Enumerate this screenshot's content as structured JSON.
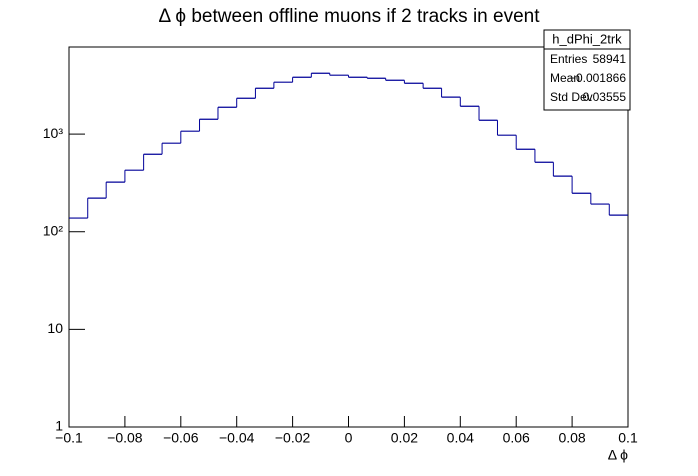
{
  "chart_data": {
    "type": "histogram",
    "title": "Δ ϕ between offline muons if 2 tracks in event",
    "x_label": "Δ ϕ",
    "bins": [
      -0.1,
      -0.0933,
      -0.0867,
      -0.08,
      -0.0733,
      -0.0667,
      -0.06,
      -0.0533,
      -0.0467,
      -0.04,
      -0.0333,
      -0.0267,
      -0.02,
      -0.0133,
      -0.0067,
      0,
      0.0067,
      0.0133,
      0.02,
      0.0267,
      0.0333,
      0.04,
      0.0467,
      0.0533,
      0.06,
      0.0667,
      0.0733,
      0.08,
      0.0867,
      0.0933,
      0.1
    ],
    "values": [
      138,
      221,
      322,
      427,
      622,
      807,
      1071,
      1420,
      1885,
      2330,
      2950,
      3400,
      3820,
      4200,
      4010,
      3820,
      3730,
      3560,
      3320,
      2950,
      2390,
      1930,
      1387,
      975,
      700,
      515,
      371,
      248,
      192,
      148
    ],
    "color": "#000099",
    "xlim": [
      -0.1,
      0.1
    ],
    "xticks": [
      {
        "value": -0.1,
        "label": "−0.1"
      },
      {
        "value": -0.08,
        "label": "−0.08"
      },
      {
        "value": -0.06,
        "label": "−0.06"
      },
      {
        "value": -0.04,
        "label": "−0.04"
      },
      {
        "value": -0.02,
        "label": "−0.02"
      },
      0,
      0.02,
      0.04,
      0.06,
      0.08,
      0.1
    ],
    "ylim": [
      1,
      7800
    ],
    "yscale": "log",
    "yticks": [
      1,
      10,
      {
        "value": 100,
        "label": "10²"
      },
      {
        "value": 1000,
        "label": "10³"
      }
    ],
    "stats": {
      "name": "h_dPhi_2trk",
      "rows": [
        {
          "label": "Entries",
          "value": "58941"
        },
        {
          "label": "Mean",
          "value": "−0.001866"
        },
        {
          "label": "Std Dev",
          "value": "0.03555"
        }
      ]
    }
  }
}
